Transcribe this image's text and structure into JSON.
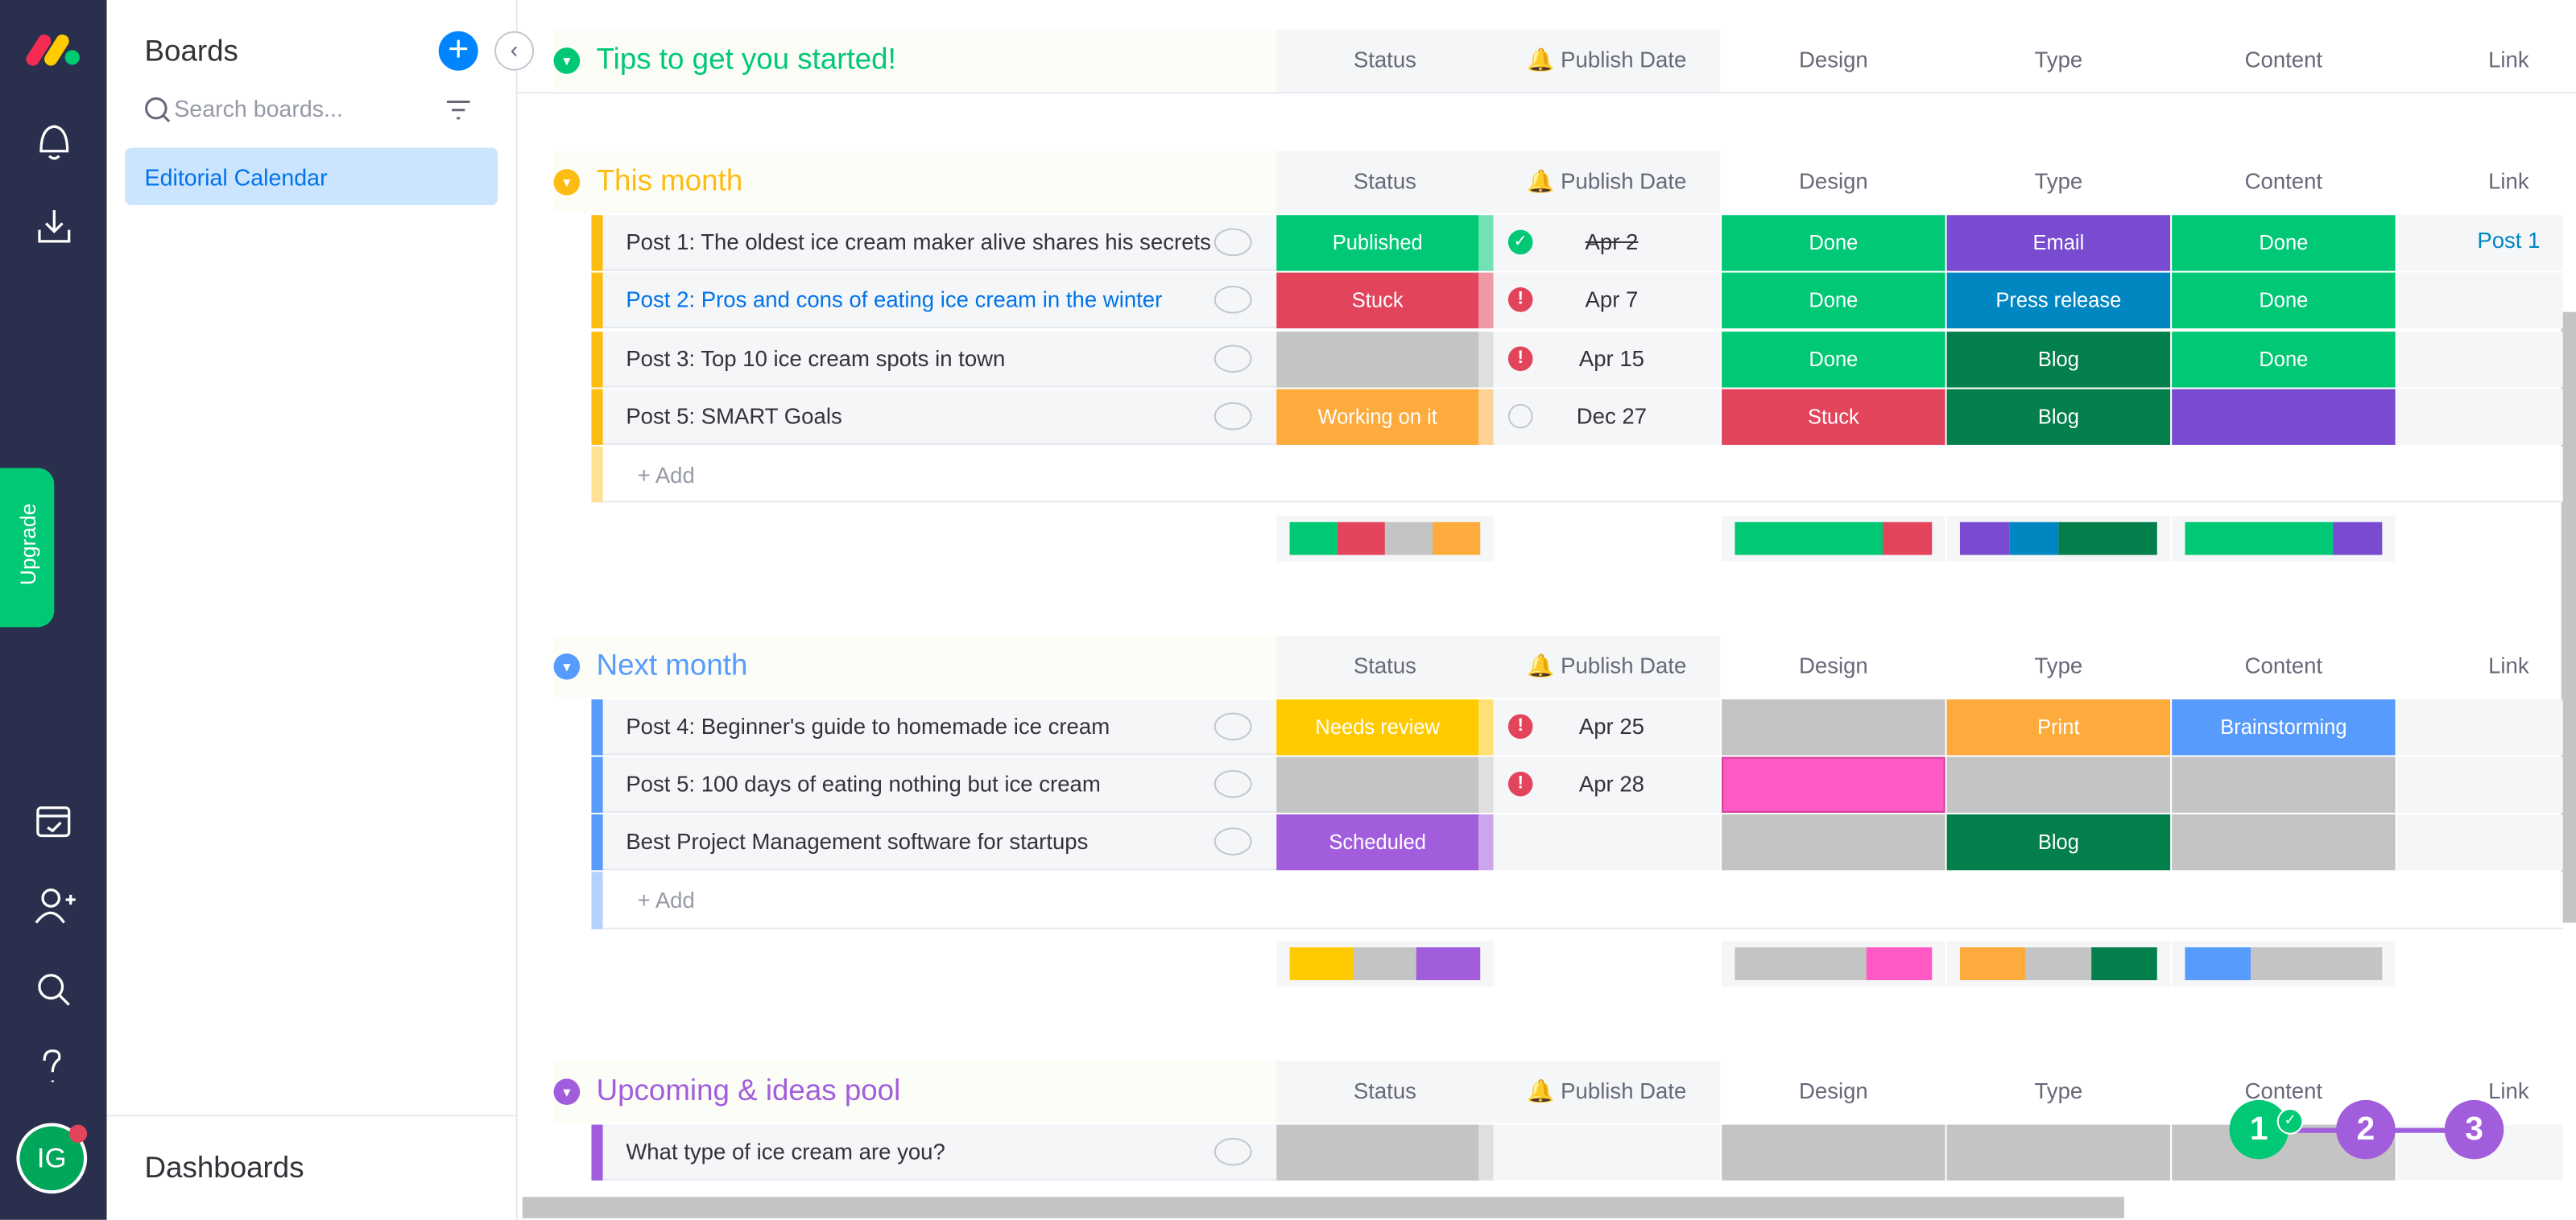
{
  "nav": {
    "upgrade": "Upgrade",
    "avatar": "IG"
  },
  "boards_panel": {
    "title": "Boards",
    "search_placeholder": "Search boards...",
    "items": [
      "Editorial Calendar"
    ],
    "footer": "Dashboards"
  },
  "columns": [
    "Status",
    "Publish Date",
    "Design",
    "Type",
    "Content",
    "Link"
  ],
  "add_label": "+ Add",
  "steps": [
    "1",
    "2",
    "3"
  ],
  "groups": [
    {
      "title": "Tips to get you started!",
      "color": "#00c875",
      "rows": []
    },
    {
      "title": "This month",
      "color": "#fdbc11",
      "rows": [
        {
          "name": "Post 1: The oldest ice cream maker alive shares his secrets",
          "status": {
            "label": "Published",
            "color": "#00c875"
          },
          "date": "Apr 2",
          "date_state": "done",
          "design": {
            "label": "Done",
            "color": "#00c875"
          },
          "type": {
            "label": "Email",
            "color": "#784bd1"
          },
          "content": {
            "label": "Done",
            "color": "#00c875"
          },
          "link": "Post 1"
        },
        {
          "name": "Post 2: Pros and cons of eating ice cream in the winter",
          "status": {
            "label": "Stuck",
            "color": "#e2445c"
          },
          "date": "Apr 7",
          "date_state": "alert",
          "design": {
            "label": "Done",
            "color": "#00c875"
          },
          "type": {
            "label": "Press release",
            "color": "#0086c0"
          },
          "content": {
            "label": "Done",
            "color": "#00c875"
          },
          "link": null
        },
        {
          "name": "Post 3: Top 10 ice cream spots in town",
          "status": {
            "label": null,
            "color": "#c4c4c4"
          },
          "date": "Apr 15",
          "date_state": "alert",
          "design": {
            "label": "Done",
            "color": "#00c875"
          },
          "type": {
            "label": "Blog",
            "color": "#037f4c"
          },
          "content": {
            "label": "Done",
            "color": "#00c875"
          },
          "link": null
        },
        {
          "name": "Post 5: SMART Goals",
          "status": {
            "label": "Working on it",
            "color": "#fdab3d"
          },
          "date": "Dec 27",
          "date_state": "none",
          "design": {
            "label": "Stuck",
            "color": "#e2445c"
          },
          "type": {
            "label": "Blog",
            "color": "#037f4c"
          },
          "content": {
            "label": null,
            "color": "#784bd1"
          },
          "link": null
        }
      ]
    },
    {
      "title": "Next month",
      "color": "#579bfc",
      "rows": [
        {
          "name": "Post 4: Beginner's guide to homemade ice cream",
          "status": {
            "label": "Needs review",
            "color": "#ffcb00"
          },
          "date": "Apr 25",
          "date_state": "alert",
          "design": {
            "label": null,
            "color": "#c4c4c4"
          },
          "type": {
            "label": "Print",
            "color": "#fdab3d"
          },
          "content": {
            "label": "Brainstorming",
            "color": "#579bfc"
          },
          "link": null
        },
        {
          "name": "Post 5: 100 days of eating nothing but ice cream",
          "status": {
            "label": null,
            "color": "#c4c4c4"
          },
          "date": "Apr 28",
          "date_state": "alert",
          "design": {
            "label": null,
            "color": "#ff5ac4"
          },
          "type": {
            "label": null,
            "color": "#c4c4c4"
          },
          "content": {
            "label": null,
            "color": "#c4c4c4"
          },
          "link": null
        },
        {
          "name": "Best Project Management software for startups",
          "status": {
            "label": "Scheduled",
            "color": "#a25ddc"
          },
          "date": null,
          "date_state": null,
          "design": {
            "label": null,
            "color": "#c4c4c4"
          },
          "type": {
            "label": "Blog",
            "color": "#037f4c"
          },
          "content": {
            "label": null,
            "color": "#c4c4c4"
          },
          "link": null
        }
      ]
    },
    {
      "title": "Upcoming & ideas pool",
      "color": "#a25ddc",
      "rows": [
        {
          "name": "What type of ice cream are you?",
          "status": {
            "label": null,
            "color": "#c4c4c4"
          },
          "date": null,
          "date_state": null,
          "design": {
            "label": null,
            "color": "#c4c4c4"
          },
          "type": {
            "label": null,
            "color": "#c4c4c4"
          },
          "content": {
            "label": null,
            "color": "#c4c4c4"
          },
          "link": null
        }
      ]
    }
  ]
}
